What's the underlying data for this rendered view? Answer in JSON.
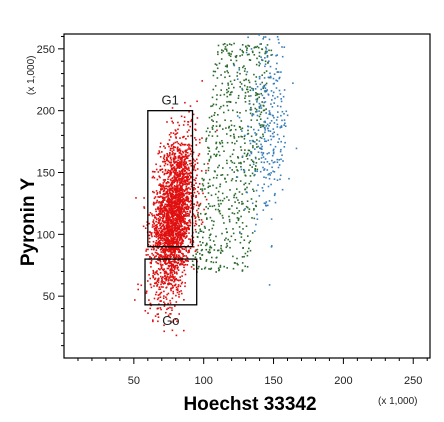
{
  "chart_data": {
    "type": "scatter",
    "title": "",
    "xlabel": "Hoechst 33342",
    "ylabel": "Pyronin Y",
    "x_multiplier": "(x 1,000)",
    "y_multiplier": "(x 1,000)",
    "xlim": [
      0,
      262
    ],
    "ylim": [
      0,
      262
    ],
    "x_ticks": [
      "50",
      "100",
      "150",
      "200",
      "250"
    ],
    "y_ticks": [
      "50",
      "100",
      "150",
      "200",
      "250"
    ],
    "grid": false,
    "legend": "none",
    "series": [
      {
        "color": "#e01010",
        "description_points": "dense population, G0/G1 cells",
        "count": 2600,
        "center": [
          78,
          115
        ],
        "spread": [
          7,
          32
        ]
      },
      {
        "color": "#2e6b2e",
        "description_points": "S phase cells",
        "count": 650,
        "x_range": [
          90,
          150
        ],
        "y_range": [
          70,
          255
        ]
      },
      {
        "color": "#3a7fb8",
        "description_points": "G2/M cells",
        "count": 320,
        "center": [
          145,
          190
        ],
        "spread": [
          8,
          38
        ]
      }
    ],
    "gates": [
      {
        "label": "G1",
        "x": [
          60,
          92
        ],
        "y": [
          90,
          200
        ]
      },
      {
        "label": "Go",
        "x": [
          58,
          95
        ],
        "y": [
          43,
          80
        ]
      }
    ]
  }
}
